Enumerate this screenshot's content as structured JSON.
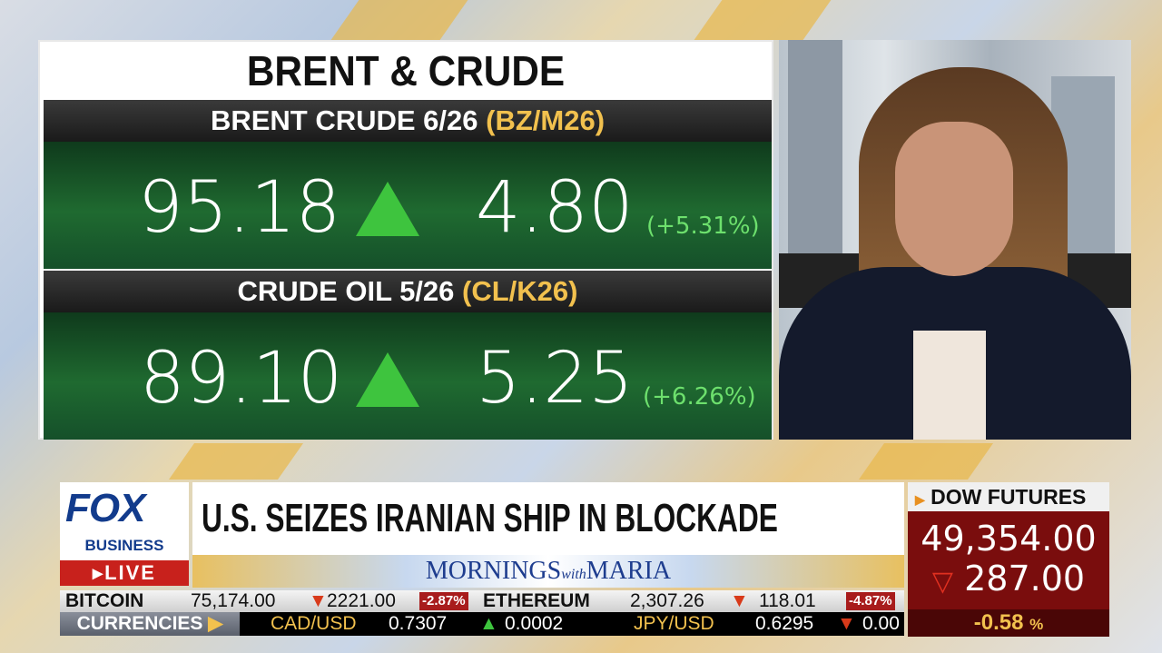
{
  "board": {
    "title": "BRENT & CRUDE",
    "items": [
      {
        "name": "BRENT CRUDE 6/26",
        "code": "(BZ/M26)",
        "price": "95.18",
        "direction": "up",
        "change": "4.80",
        "percent": "(+5.31%)"
      },
      {
        "name": "CRUDE OIL 5/26",
        "code": "(CL/K26)",
        "price": "89.10",
        "direction": "up",
        "change": "5.25",
        "percent": "(+6.26%)"
      }
    ]
  },
  "logo": {
    "brand": "FOX",
    "sub": "BUSINESS",
    "live": "LIVE"
  },
  "headline": "U.S. SEIZES IRANIAN SHIP IN BLOCKADE",
  "show": {
    "part1": "MORNINGS",
    "part2": "with",
    "part3": "MARIA"
  },
  "dow": {
    "label": "DOW FUTURES",
    "value": "49,354.00",
    "direction": "down",
    "change": "287.00",
    "percent": "-0.58",
    "percent_sign": "%"
  },
  "ticker_crypto": [
    {
      "name": "BITCOIN",
      "value": "75,174.00",
      "direction": "down",
      "change": "2221.00",
      "percent": "-2.87%"
    },
    {
      "name": "ETHEREUM",
      "value": "2,307.26",
      "direction": "down",
      "change": "118.01",
      "percent": "-4.87%"
    }
  ],
  "ticker_currencies": {
    "label": "CURRENCIES",
    "items": [
      {
        "pair": "CAD/USD",
        "value": "0.7307",
        "direction": "up",
        "change": "0.0002"
      },
      {
        "pair": "JPY/USD",
        "value": "0.6295",
        "direction": "down",
        "change": "0.00"
      }
    ]
  },
  "colors": {
    "up": "#3ec43e",
    "down": "#d83a1a",
    "accent": "#f2c14e",
    "fox_blue": "#123b8c",
    "live_red": "#c8211c"
  }
}
